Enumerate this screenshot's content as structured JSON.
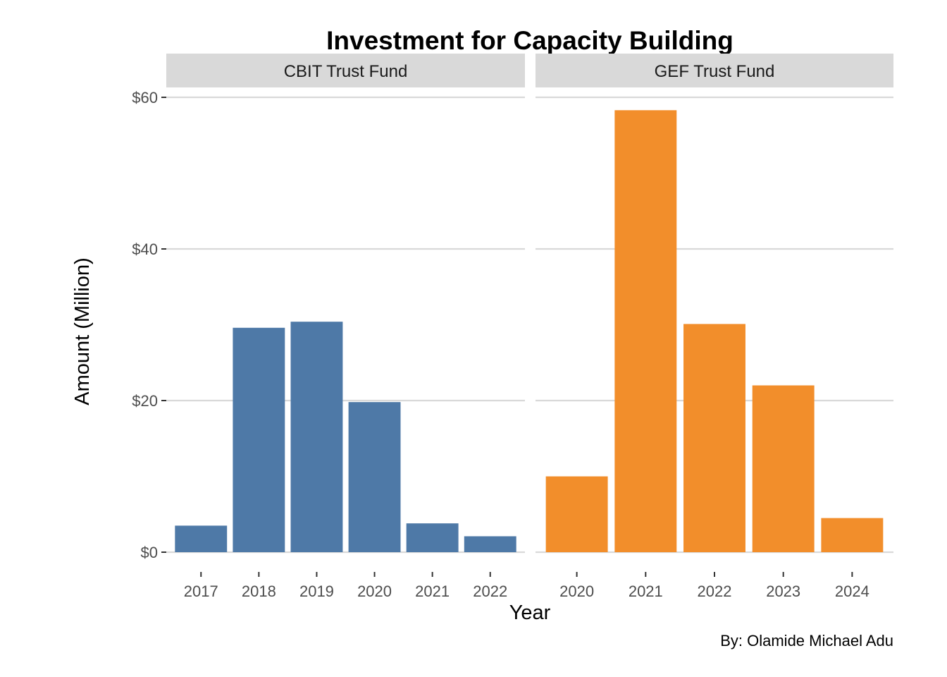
{
  "chart_data": {
    "type": "bar",
    "title": "Investment for Capacity Building",
    "xlabel": "Year",
    "ylabel": "Amount (Million)",
    "caption": "By: Olamide Michael Adu",
    "ylim": [
      0,
      60
    ],
    "yticks": [
      {
        "value": 0,
        "label": "$0"
      },
      {
        "value": 20,
        "label": "$20"
      },
      {
        "value": 40,
        "label": "$40"
      },
      {
        "value": 60,
        "label": "$60"
      }
    ],
    "grid": true,
    "facets": [
      {
        "name": "CBIT Trust Fund",
        "color": "#4e79a7",
        "categories": [
          "2017",
          "2018",
          "2019",
          "2020",
          "2021",
          "2022"
        ],
        "values": [
          3.5,
          29.6,
          30.4,
          19.8,
          3.8,
          2.1
        ]
      },
      {
        "name": "GEF Trust Fund",
        "color": "#f28e2b",
        "categories": [
          "2020",
          "2021",
          "2022",
          "2023",
          "2024"
        ],
        "values": [
          10.0,
          58.3,
          30.1,
          22.0,
          4.5
        ]
      }
    ]
  }
}
